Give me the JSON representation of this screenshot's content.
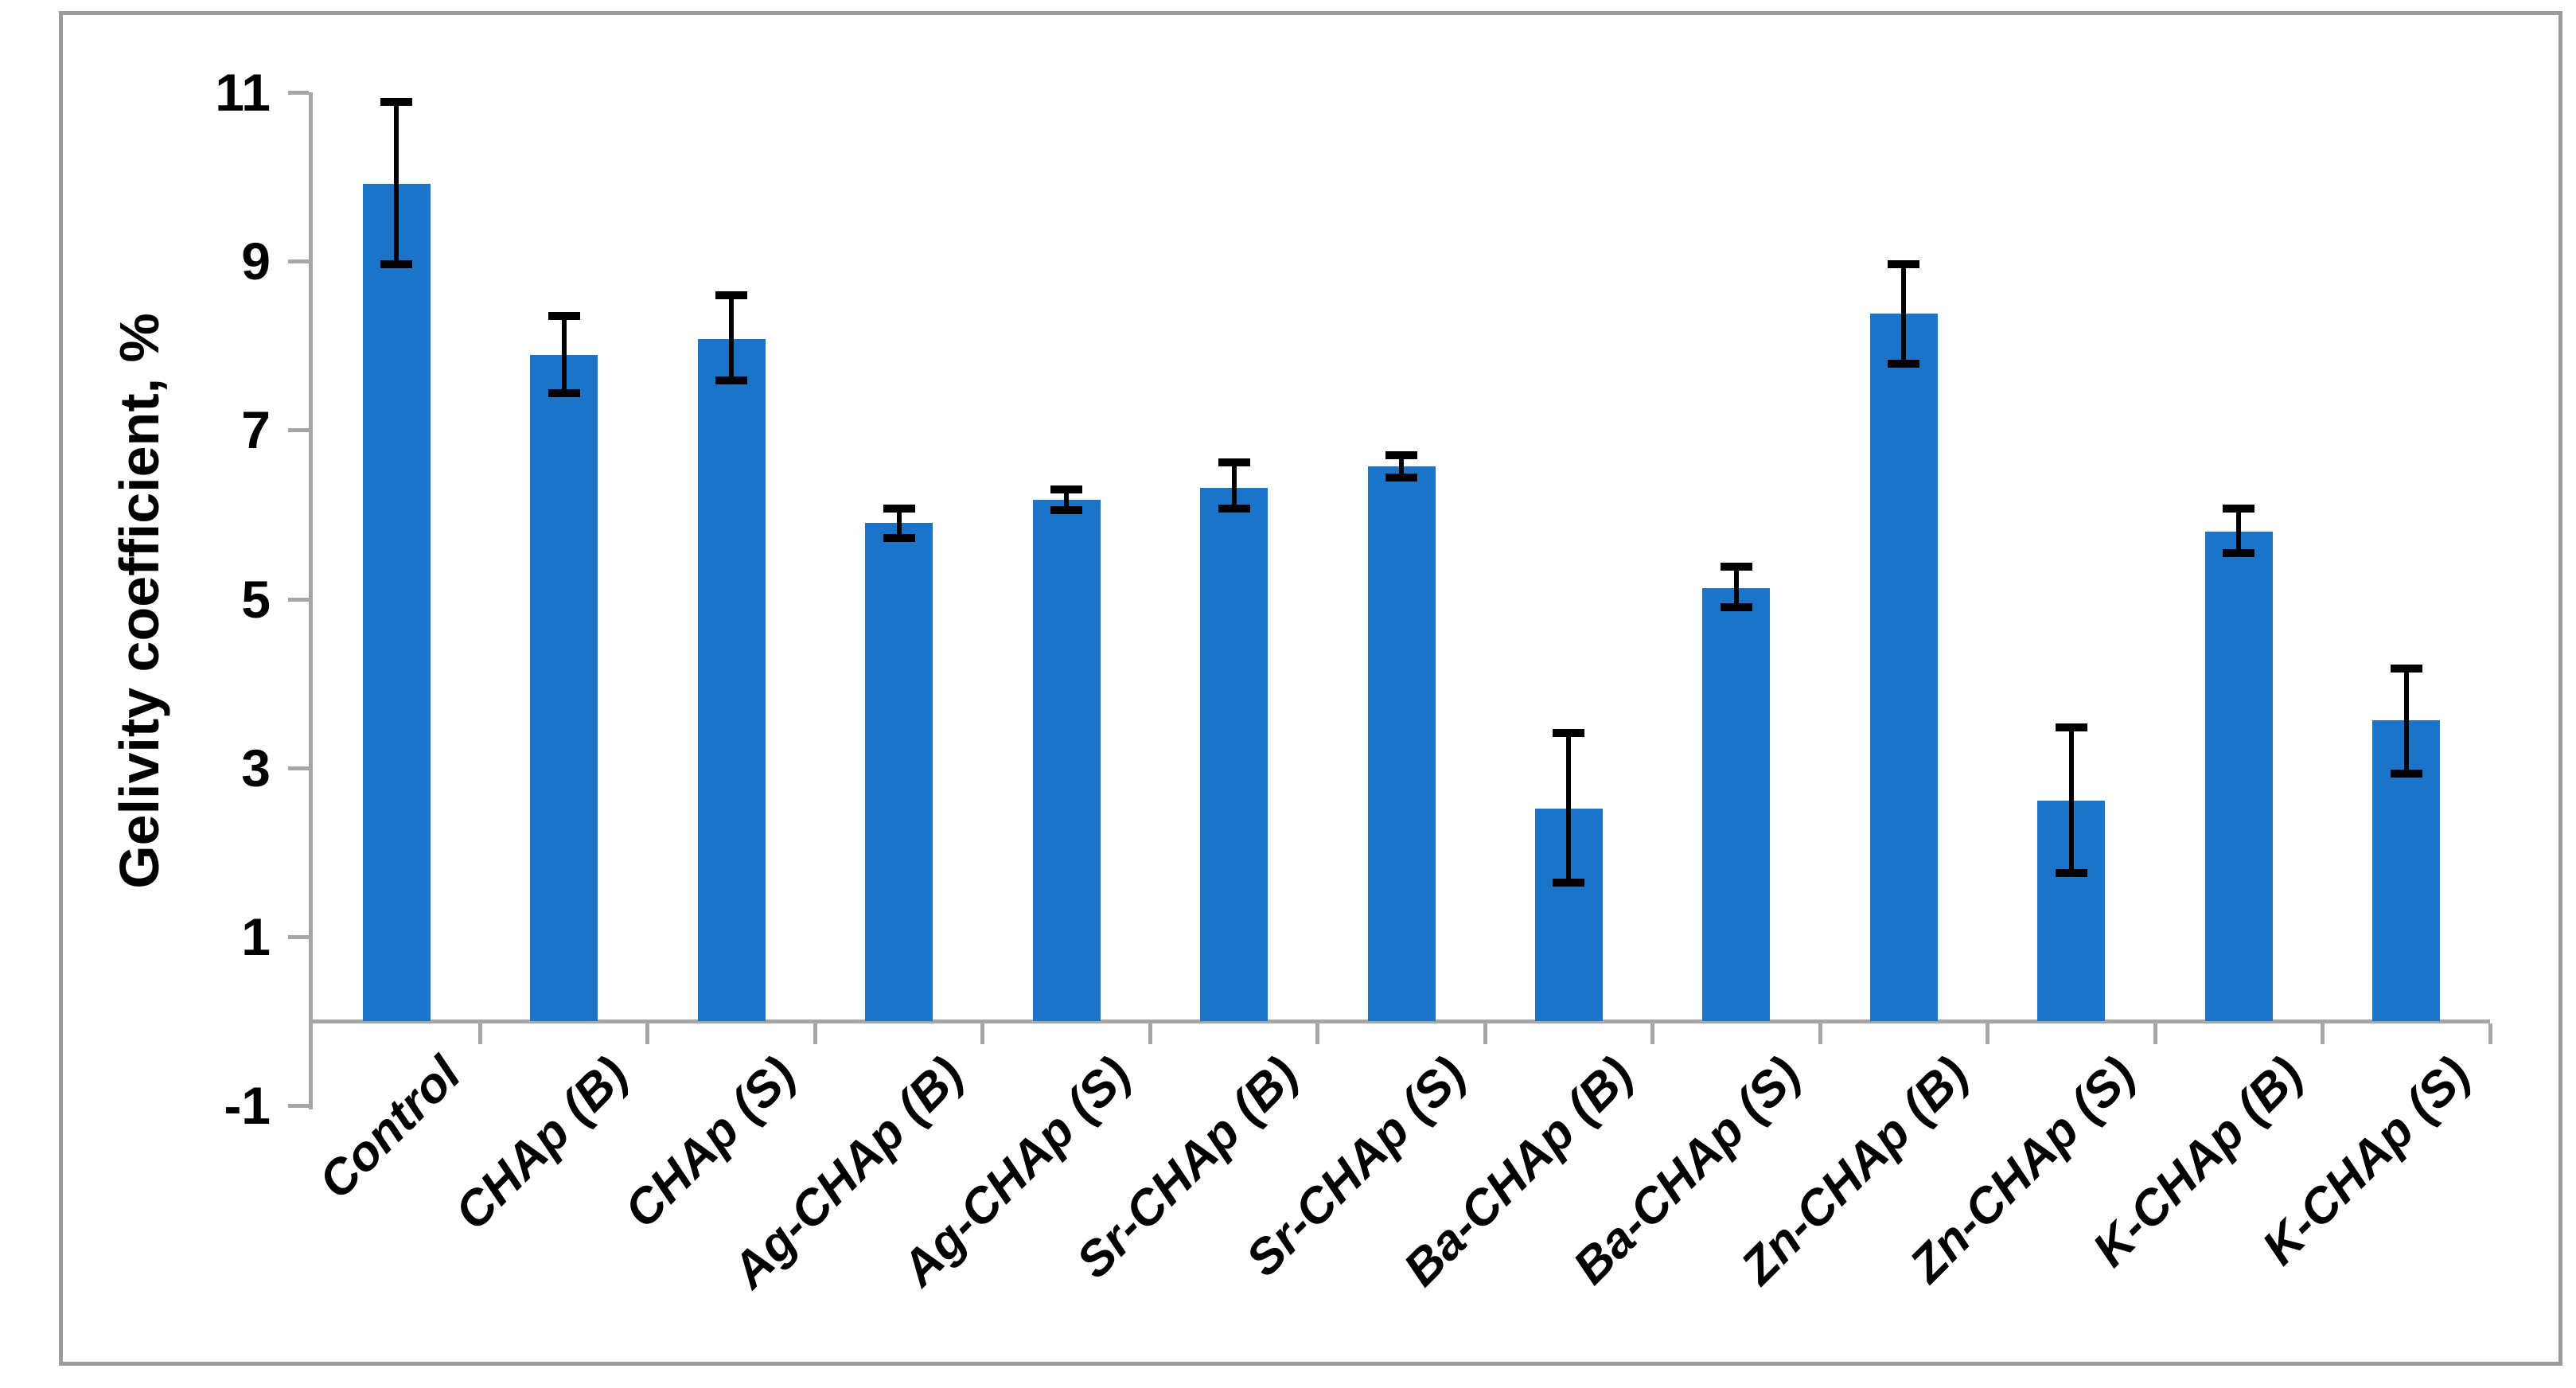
{
  "figure": {
    "background": "#ffffff",
    "frame_color": "#9b9b9b",
    "axis_color": "#a6a6a6",
    "text_color": "#000000"
  },
  "chart_data": {
    "type": "bar",
    "title": "",
    "ylabel": "Gelivity coefficient, %",
    "xlabel": "",
    "categories": [
      "Control",
      "CHAp (B)",
      "CHAp (S)",
      "Ag-CHAp (B)",
      "Ag-CHAp (S)",
      "Sr-CHAp (B)",
      "Sr-CHAp (S)",
      "Ba-CHAp (B)",
      "Ba-CHAp (S)",
      "Zn-CHAp (B)",
      "Zn-CHAp (S)",
      "K-CHAp (B)",
      "K-CHAp (S)"
    ],
    "values": [
      9.92,
      7.89,
      8.08,
      5.9,
      6.17,
      6.32,
      6.57,
      2.52,
      5.13,
      8.38,
      2.61,
      5.8,
      3.56
    ],
    "error_plus": [
      0.97,
      0.46,
      0.52,
      0.17,
      0.13,
      0.3,
      0.13,
      0.89,
      0.25,
      0.58,
      0.87,
      0.27,
      0.62
    ],
    "error_minus": [
      0.96,
      0.45,
      0.49,
      0.18,
      0.12,
      0.25,
      0.13,
      0.88,
      0.23,
      0.59,
      0.86,
      0.26,
      0.63
    ],
    "yticks": [
      -1,
      1,
      3,
      5,
      7,
      9,
      11
    ],
    "ylim": [
      -1,
      11
    ],
    "bars_start_at": 0,
    "grid": "off",
    "legend": "none",
    "bar_color": "#1b74c8",
    "error_bar_color": "#000000"
  }
}
